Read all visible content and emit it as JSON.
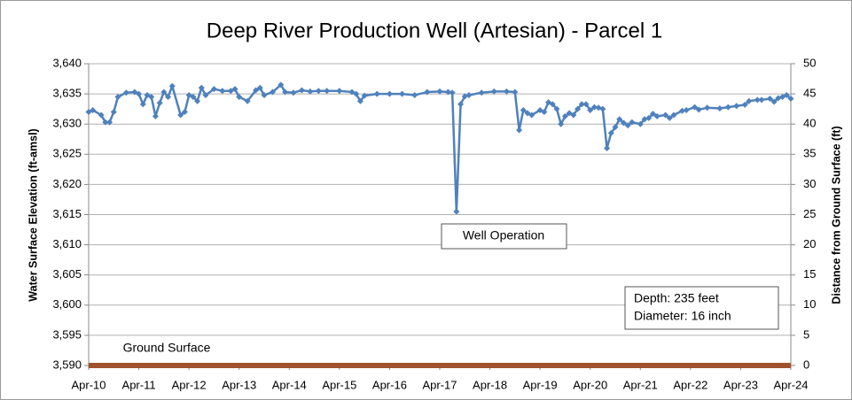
{
  "chart_data": {
    "type": "line",
    "title": "Deep River Production Well (Artesian) - Parcel 1",
    "y_label": "Water Surface Elevation (ft-amsl)",
    "y2_label": "Distance from Ground Surface (ft)",
    "annotations": [
      "Well Operation",
      "Depth:  235 feet",
      "Diameter: 16 inch"
    ],
    "xlim": [
      "2010-04",
      "2024-04"
    ],
    "xticks": [
      {
        "value": "2010-04",
        "label": "Apr-10"
      },
      {
        "value": "2011-04",
        "label": "Apr-11"
      },
      {
        "value": "2012-04",
        "label": "Apr-12"
      },
      {
        "value": "2013-04",
        "label": "Apr-13"
      },
      {
        "value": "2014-04",
        "label": "Apr-14"
      },
      {
        "value": "2015-04",
        "label": "Apr-15"
      },
      {
        "value": "2016-04",
        "label": "Apr-16"
      },
      {
        "value": "2017-04",
        "label": "Apr-17"
      },
      {
        "value": "2018-04",
        "label": "Apr-18"
      },
      {
        "value": "2019-04",
        "label": "Apr-19"
      },
      {
        "value": "2020-04",
        "label": "Apr-20"
      },
      {
        "value": "2021-04",
        "label": "Apr-21"
      },
      {
        "value": "2022-04",
        "label": "Apr-22"
      },
      {
        "value": "2023-04",
        "label": "Apr-23"
      },
      {
        "value": "2024-04",
        "label": "Apr-24"
      }
    ],
    "ylim": [
      3590,
      3640
    ],
    "yticks": [
      {
        "value": 3590,
        "label": "3,590"
      },
      {
        "value": 3595,
        "label": "3,595"
      },
      {
        "value": 3600,
        "label": "3,600"
      },
      {
        "value": 3605,
        "label": "3,605"
      },
      {
        "value": 3610,
        "label": "3,610"
      },
      {
        "value": 3615,
        "label": "3,615"
      },
      {
        "value": 3620,
        "label": "3,620"
      },
      {
        "value": 3625,
        "label": "3,625"
      },
      {
        "value": 3630,
        "label": "3,630"
      },
      {
        "value": 3635,
        "label": "3,635"
      },
      {
        "value": 3640,
        "label": "3,640"
      }
    ],
    "y2lim": [
      0,
      50
    ],
    "y2ticks": [
      0,
      5,
      10,
      15,
      20,
      25,
      30,
      35,
      40,
      45,
      50
    ],
    "grid": true,
    "series": [
      {
        "color": "#4f81bd",
        "x": [
          "2010-04",
          "2010-05",
          "2010-07",
          "2010-08",
          "2010-09",
          "2010-10",
          "2010-11",
          "2011-01",
          "2011-03",
          "2011-04",
          "2011-05",
          "2011-06",
          "2011-07",
          "2011-08",
          "2011-09",
          "2011-10",
          "2011-11",
          "2011-12",
          "2012-02",
          "2012-03",
          "2012-04",
          "2012-05",
          "2012-06",
          "2012-07",
          "2012-08",
          "2012-10",
          "2012-12",
          "2013-02",
          "2013-03",
          "2013-04",
          "2013-06",
          "2013-08",
          "2013-09",
          "2013-10",
          "2013-12",
          "2014-02",
          "2014-03",
          "2014-05",
          "2014-07",
          "2014-09",
          "2014-11",
          "2015-01",
          "2015-04",
          "2015-07",
          "2015-08",
          "2015-09",
          "2015-10",
          "2016-01",
          "2016-04",
          "2016-07",
          "2016-10",
          "2017-01",
          "2017-04",
          "2017-06",
          "2017-07",
          "2017-08",
          "2017-09",
          "2017-10",
          "2017-11",
          "2018-02",
          "2018-05",
          "2018-08",
          "2018-10",
          "2018-11",
          "2018-12",
          "2019-01",
          "2019-02",
          "2019-04",
          "2019-05",
          "2019-06",
          "2019-07",
          "2019-08",
          "2019-09",
          "2019-10",
          "2019-11",
          "2019-12",
          "2020-01",
          "2020-02",
          "2020-03",
          "2020-04",
          "2020-05",
          "2020-06",
          "2020-07",
          "2020-08",
          "2020-09",
          "2020-10",
          "2020-11",
          "2020-12",
          "2021-01",
          "2021-02",
          "2021-04",
          "2021-05",
          "2021-06",
          "2021-07",
          "2021-08",
          "2021-10",
          "2021-11",
          "2021-12",
          "2022-02",
          "2022-03",
          "2022-05",
          "2022-06",
          "2022-08",
          "2022-11",
          "2023-01",
          "2023-03",
          "2023-05",
          "2023-06",
          "2023-08",
          "2023-09",
          "2023-11",
          "2023-12",
          "2024-01",
          "2024-02",
          "2024-03",
          "2024-04"
        ],
        "values": [
          3632,
          3632.3,
          3631.5,
          3630.3,
          3630.3,
          3632,
          3634.5,
          3635.2,
          3635.3,
          3635,
          3633.3,
          3634.8,
          3634.5,
          3631.3,
          3633.5,
          3635.3,
          3634.5,
          3636.3,
          3631.5,
          3632,
          3634.8,
          3634.5,
          3633.8,
          3636,
          3634.8,
          3635.8,
          3635.5,
          3635.5,
          3635.8,
          3634.5,
          3633.8,
          3635.6,
          3636,
          3634.8,
          3635.3,
          3636.5,
          3635.3,
          3635.2,
          3635.6,
          3635.4,
          3635.5,
          3635.5,
          3635.5,
          3635.3,
          3635,
          3633.8,
          3634.7,
          3635,
          3635,
          3635,
          3634.8,
          3635.3,
          3635.4,
          3635.3,
          3635.2,
          3615.5,
          3633.3,
          3634.6,
          3634.8,
          3635.2,
          3635.4,
          3635.4,
          3635.3,
          3629,
          3632.3,
          3631.8,
          3631.5,
          3632.3,
          3632,
          3633.6,
          3633.3,
          3632.5,
          3630,
          3631.3,
          3631.8,
          3631.5,
          3632.5,
          3633.3,
          3633.3,
          3632.3,
          3632.8,
          3632.7,
          3632.5,
          3626,
          3628.5,
          3629.5,
          3630.8,
          3630.2,
          3629.8,
          3630.3,
          3630,
          3630.8,
          3631,
          3631.7,
          3631.3,
          3631.5,
          3631,
          3631.5,
          3632.2,
          3632.3,
          3632.8,
          3632.4,
          3632.7,
          3632.6,
          3632.8,
          3633,
          3633.2,
          3633.8,
          3634,
          3634,
          3634.2,
          3633.7,
          3634.3,
          3634.5,
          3634.8,
          3634.2
        ]
      },
      {
        "name": "Ground Surface",
        "color": "#a0522d",
        "x": [
          "2010-04",
          "2024-04"
        ],
        "values": [
          3590,
          3590
        ]
      }
    ]
  }
}
